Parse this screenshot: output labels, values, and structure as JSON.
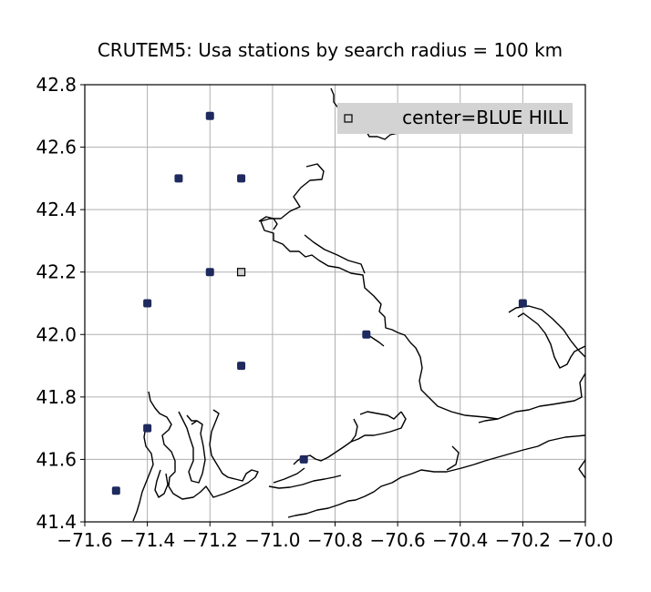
{
  "chart_data": {
    "type": "scatter",
    "title": "CRUTEM5: Usa stations by search radius = 100 km",
    "xlim": [
      -71.6,
      -70.0
    ],
    "ylim": [
      41.4,
      42.8
    ],
    "x_ticks": [
      -71.6,
      -71.4,
      -71.2,
      -71.0,
      -70.8,
      -70.6,
      -70.4,
      -70.2,
      -70.0
    ],
    "y_ticks": [
      41.4,
      41.6,
      41.8,
      42.0,
      42.2,
      42.4,
      42.6,
      42.8
    ],
    "x_tick_labels": [
      "−71.6",
      "−71.4",
      "−71.2",
      "−71.0",
      "−70.8",
      "−70.6",
      "−70.4",
      "−70.2",
      "−70.0"
    ],
    "y_tick_labels": [
      "41.4",
      "41.6",
      "41.8",
      "42.0",
      "42.2",
      "42.4",
      "42.6",
      "42.8"
    ],
    "grid": true,
    "legend": {
      "position": "top-right",
      "entries": [
        "center=BLUE HILL"
      ]
    },
    "center": {
      "x": -71.1,
      "y": 42.2
    },
    "stations": [
      {
        "x": -71.2,
        "y": 42.7
      },
      {
        "x": -71.3,
        "y": 42.5
      },
      {
        "x": -71.1,
        "y": 42.5
      },
      {
        "x": -71.2,
        "y": 42.2
      },
      {
        "x": -71.4,
        "y": 42.1
      },
      {
        "x": -70.7,
        "y": 42.0
      },
      {
        "x": -70.2,
        "y": 42.1
      },
      {
        "x": -71.1,
        "y": 41.9
      },
      {
        "x": -71.4,
        "y": 41.7
      },
      {
        "x": -70.9,
        "y": 41.6
      },
      {
        "x": -71.5,
        "y": 41.5
      }
    ],
    "colors": {
      "station": "#1f2a5e",
      "center": "#444444",
      "grid": "#b0b0b0",
      "coast": "#000000",
      "legend_bg": "#d3d3d3"
    }
  }
}
